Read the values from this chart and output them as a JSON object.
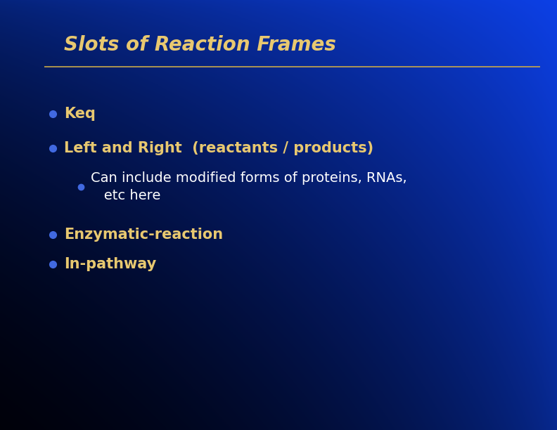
{
  "title": "Slots of Reaction Frames",
  "title_color": "#E8C870",
  "title_fontsize": 20,
  "title_style": "italic",
  "title_weight": "bold",
  "separator_color": "#C8A84B",
  "bullet_color": "#4169E1",
  "text_color_bold": "#E8C870",
  "text_color_white": "#FFFFFF",
  "figsize": [
    7.92,
    6.12
  ],
  "dpi": 100,
  "bullets": [
    {
      "level": 1,
      "text": "Keq",
      "bold": true,
      "white": false
    },
    {
      "level": 1,
      "text": "Left and Right  (reactants / products)",
      "bold": true,
      "white": false
    },
    {
      "level": 2,
      "text": "Can include modified forms of proteins, RNAs,\n   etc here",
      "bold": false,
      "white": true
    },
    {
      "level": 1,
      "text": "Enzymatic-reaction",
      "bold": true,
      "white": false
    },
    {
      "level": 1,
      "text": "In-pathway",
      "bold": true,
      "white": false
    }
  ]
}
